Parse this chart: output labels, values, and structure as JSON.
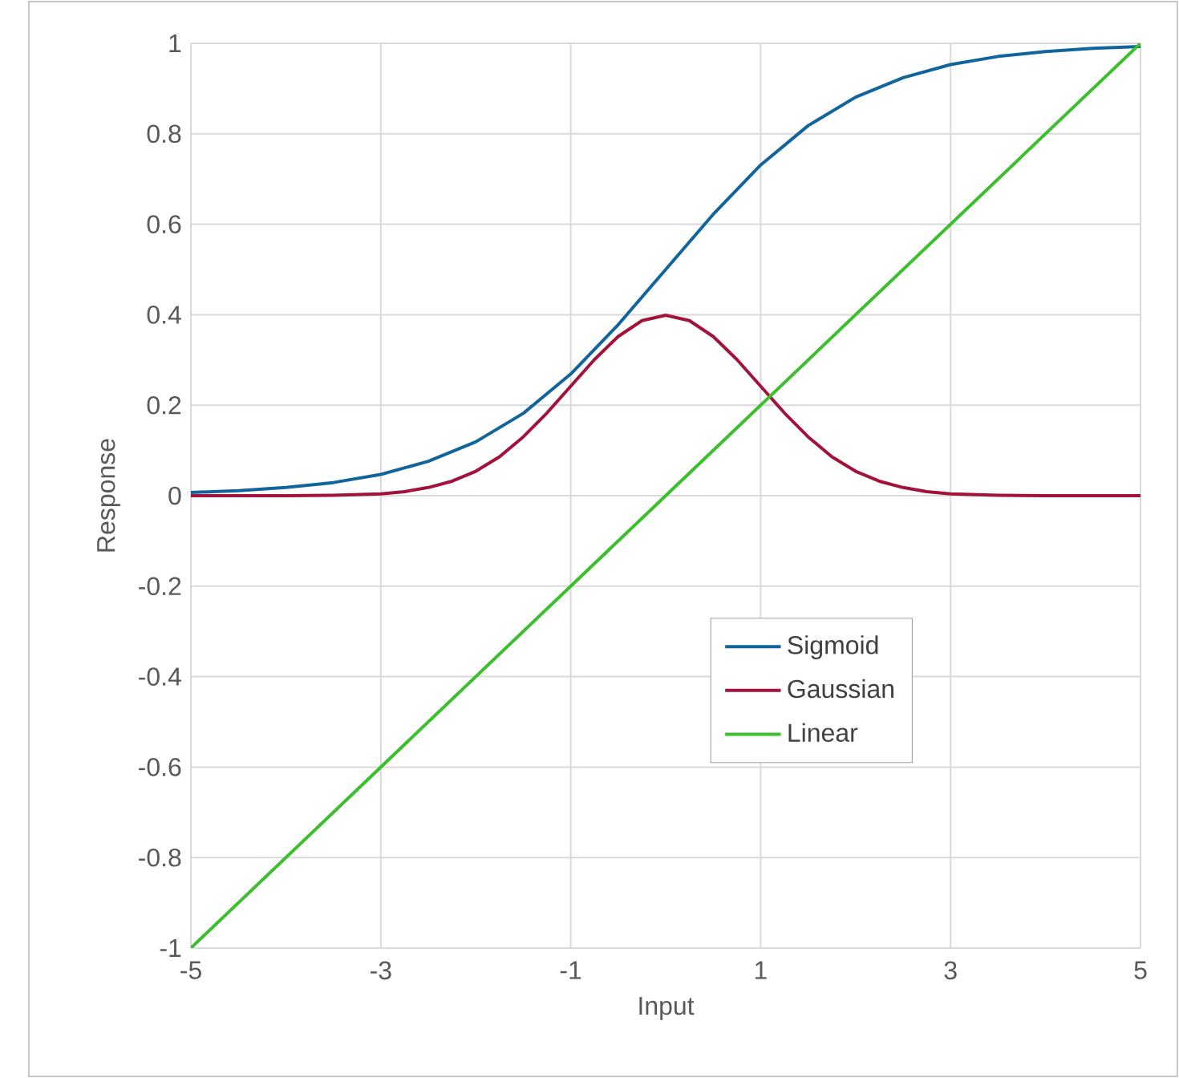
{
  "chart_data": {
    "type": "line",
    "xlabel": "Input",
    "ylabel": "Response",
    "xlim": [
      -5,
      5
    ],
    "xticks": [
      -5,
      -3,
      -1,
      1,
      3,
      5
    ],
    "ylim": [
      -1,
      1
    ],
    "yticks": [
      -1,
      -0.8,
      -0.6,
      -0.4,
      -0.2,
      0,
      0.2,
      0.4,
      0.6,
      0.8,
      1
    ],
    "grid": true,
    "legend": "right",
    "marker": "none",
    "line_style": "solid",
    "series": [
      {
        "name": "Sigmoid",
        "color": "#11659c",
        "x": [
          -5,
          -4.5,
          -4,
          -3.5,
          -3,
          -2.5,
          -2,
          -1.5,
          -1,
          -0.5,
          0,
          0.5,
          1,
          1.5,
          2,
          2.5,
          3,
          3.5,
          4,
          4.5,
          5
        ],
        "values": [
          0.007,
          0.011,
          0.018,
          0.029,
          0.047,
          0.076,
          0.119,
          0.182,
          0.269,
          0.378,
          0.5,
          0.622,
          0.731,
          0.818,
          0.881,
          0.924,
          0.953,
          0.971,
          0.982,
          0.989,
          0.993
        ]
      },
      {
        "name": "Gaussian",
        "color": "#a3123a",
        "x": [
          -5,
          -4.5,
          -4,
          -3.5,
          -3,
          -2.75,
          -2.5,
          -2.25,
          -2,
          -1.75,
          -1.5,
          -1.25,
          -1,
          -0.75,
          -0.5,
          -0.25,
          0,
          0.25,
          0.5,
          0.75,
          1,
          1.25,
          1.5,
          1.75,
          2,
          2.25,
          2.5,
          2.75,
          3,
          3.5,
          4,
          4.5,
          5
        ],
        "values": [
          0,
          0,
          0,
          0.001,
          0.004,
          0.009,
          0.018,
          0.032,
          0.054,
          0.086,
          0.13,
          0.183,
          0.242,
          0.301,
          0.352,
          0.387,
          0.399,
          0.387,
          0.352,
          0.301,
          0.242,
          0.183,
          0.13,
          0.086,
          0.054,
          0.032,
          0.018,
          0.009,
          0.004,
          0.001,
          0,
          0,
          0
        ]
      },
      {
        "name": "Linear",
        "color": "#3cbf2c",
        "x": [
          -5,
          0,
          5
        ],
        "values": [
          -1,
          0,
          1
        ]
      }
    ]
  }
}
